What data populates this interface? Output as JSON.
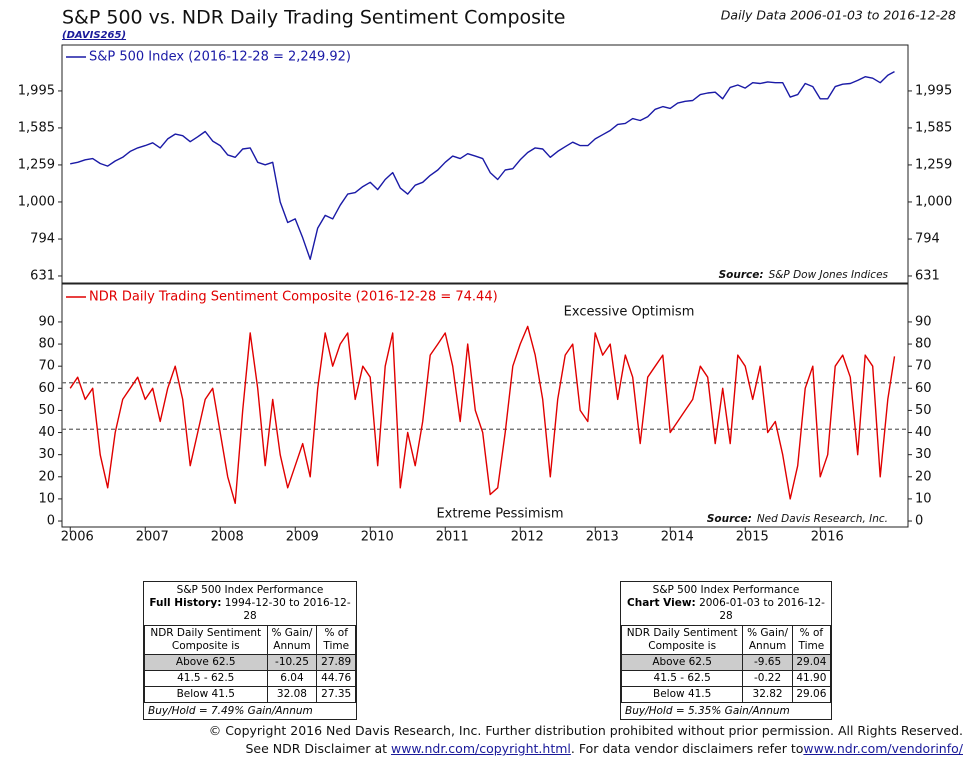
{
  "header": {
    "title": "S&P 500 vs. NDR Daily Trading Sentiment Composite",
    "code": "(DAVIS265)",
    "subtitle": "Daily Data 2006-01-03 to 2016-12-28"
  },
  "chart_data": [
    {
      "type": "line",
      "log_scale": true,
      "series": [
        {
          "name": "S&P 500 Index (2016-12-28 = 2,249.92)",
          "color": "#1a1aa6",
          "values": [
            1268,
            1280,
            1300,
            1310,
            1270,
            1250,
            1290,
            1320,
            1370,
            1400,
            1420,
            1445,
            1400,
            1480,
            1525,
            1510,
            1455,
            1500,
            1550,
            1460,
            1420,
            1340,
            1320,
            1390,
            1400,
            1280,
            1260,
            1280,
            1000,
            880,
            900,
            800,
            700,
            850,
            920,
            900,
            980,
            1050,
            1060,
            1100,
            1130,
            1080,
            1150,
            1200,
            1090,
            1050,
            1110,
            1130,
            1180,
            1220,
            1280,
            1330,
            1310,
            1350,
            1330,
            1310,
            1200,
            1150,
            1220,
            1230,
            1300,
            1360,
            1400,
            1390,
            1320,
            1370,
            1410,
            1450,
            1420,
            1420,
            1480,
            1520,
            1560,
            1620,
            1630,
            1680,
            1660,
            1700,
            1780,
            1810,
            1790,
            1850,
            1870,
            1880,
            1950,
            1970,
            1980,
            1900,
            2040,
            2070,
            2030,
            2100,
            2090,
            2110,
            2100,
            2100,
            1920,
            1950,
            2090,
            2050,
            1900,
            1900,
            2050,
            2080,
            2090,
            2130,
            2180,
            2160,
            2100,
            2200,
            2249.92
          ]
        }
      ],
      "x": [
        2006.0,
        2006.1,
        2006.2,
        2006.3,
        2006.4,
        2006.5,
        2006.6,
        2006.7,
        2006.8,
        2006.9,
        2007.0,
        2007.1,
        2007.2,
        2007.3,
        2007.4,
        2007.5,
        2007.6,
        2007.7,
        2007.8,
        2007.9,
        2008.0,
        2008.1,
        2008.2,
        2008.3,
        2008.4,
        2008.5,
        2008.6,
        2008.7,
        2008.8,
        2008.9,
        2009.0,
        2009.1,
        2009.2,
        2009.3,
        2009.4,
        2009.5,
        2009.6,
        2009.7,
        2009.8,
        2009.9,
        2010.0,
        2010.1,
        2010.2,
        2010.3,
        2010.4,
        2010.5,
        2010.6,
        2010.7,
        2010.8,
        2010.9,
        2011.0,
        2011.1,
        2011.2,
        2011.3,
        2011.4,
        2011.5,
        2011.6,
        2011.7,
        2011.8,
        2011.9,
        2012.0,
        2012.1,
        2012.2,
        2012.3,
        2012.4,
        2012.5,
        2012.6,
        2012.7,
        2012.8,
        2012.9,
        2013.0,
        2013.1,
        2013.2,
        2013.3,
        2013.4,
        2013.5,
        2013.6,
        2013.7,
        2013.8,
        2013.9,
        2014.0,
        2014.1,
        2014.2,
        2014.3,
        2014.4,
        2014.5,
        2014.6,
        2014.7,
        2014.8,
        2014.9,
        2015.0,
        2015.1,
        2015.2,
        2015.3,
        2015.4,
        2015.5,
        2015.6,
        2015.7,
        2015.8,
        2015.9,
        2016.0,
        2016.1,
        2016.2,
        2016.3,
        2016.4,
        2016.5,
        2016.6,
        2016.7,
        2016.8,
        2016.9,
        2016.99
      ],
      "xlim": [
        2005.89,
        2017.17
      ],
      "ylim": [
        604,
        2655
      ],
      "yticks": [
        631,
        794,
        {
          "value": 1000,
          "label": "1,000"
        },
        {
          "value": 1259,
          "label": "1,259"
        },
        {
          "value": 1585,
          "label": "1,585"
        },
        {
          "value": 1995,
          "label": "1,995"
        }
      ],
      "source_label": "Source:",
      "source": "S&P Dow Jones Indices"
    },
    {
      "type": "line",
      "series": [
        {
          "name": "NDR Daily Trading Sentiment Composite (2016-12-28 = 74.44)",
          "color": "#e00000",
          "values": [
            60,
            65,
            55,
            60,
            30,
            15,
            40,
            55,
            60,
            65,
            55,
            60,
            45,
            60,
            70,
            55,
            25,
            40,
            55,
            60,
            40,
            20,
            8,
            50,
            85,
            60,
            25,
            55,
            30,
            15,
            25,
            35,
            20,
            60,
            85,
            70,
            80,
            85,
            55,
            70,
            65,
            25,
            70,
            85,
            15,
            40,
            25,
            45,
            75,
            80,
            85,
            70,
            45,
            80,
            50,
            40,
            12,
            15,
            40,
            70,
            80,
            88,
            75,
            55,
            20,
            55,
            75,
            80,
            50,
            45,
            85,
            75,
            80,
            55,
            75,
            65,
            35,
            65,
            70,
            75,
            40,
            45,
            50,
            55,
            70,
            65,
            35,
            60,
            35,
            75,
            70,
            55,
            70,
            40,
            45,
            30,
            10,
            25,
            60,
            70,
            20,
            30,
            70,
            75,
            65,
            30,
            75,
            70,
            20,
            55,
            74.44
          ]
        }
      ],
      "x": [
        2006.0,
        2006.1,
        2006.2,
        2006.3,
        2006.4,
        2006.5,
        2006.6,
        2006.7,
        2006.8,
        2006.9,
        2007.0,
        2007.1,
        2007.2,
        2007.3,
        2007.4,
        2007.5,
        2007.6,
        2007.7,
        2007.8,
        2007.9,
        2008.0,
        2008.1,
        2008.2,
        2008.3,
        2008.4,
        2008.5,
        2008.6,
        2008.7,
        2008.8,
        2008.9,
        2009.0,
        2009.1,
        2009.2,
        2009.3,
        2009.4,
        2009.5,
        2009.6,
        2009.7,
        2009.8,
        2009.9,
        2010.0,
        2010.1,
        2010.2,
        2010.3,
        2010.4,
        2010.5,
        2010.6,
        2010.7,
        2010.8,
        2010.9,
        2011.0,
        2011.1,
        2011.2,
        2011.3,
        2011.4,
        2011.5,
        2011.6,
        2011.7,
        2011.8,
        2011.9,
        2012.0,
        2012.1,
        2012.2,
        2012.3,
        2012.4,
        2012.5,
        2012.6,
        2012.7,
        2012.8,
        2012.9,
        2013.0,
        2013.1,
        2013.2,
        2013.3,
        2013.4,
        2013.5,
        2013.6,
        2013.7,
        2013.8,
        2013.9,
        2014.0,
        2014.1,
        2014.2,
        2014.3,
        2014.4,
        2014.5,
        2014.6,
        2014.7,
        2014.8,
        2014.9,
        2015.0,
        2015.1,
        2015.2,
        2015.3,
        2015.4,
        2015.5,
        2015.6,
        2015.7,
        2015.8,
        2015.9,
        2016.0,
        2016.1,
        2016.2,
        2016.3,
        2016.4,
        2016.5,
        2016.6,
        2016.7,
        2016.8,
        2016.9,
        2016.99
      ],
      "xlim": [
        2005.89,
        2017.17
      ],
      "xticks": [
        2006,
        2007,
        2008,
        2009,
        2010,
        2011,
        2012,
        2013,
        2014,
        2015,
        2016
      ],
      "ylim": [
        -2.7,
        106.7
      ],
      "yticks": [
        0,
        10,
        20,
        30,
        40,
        50,
        60,
        70,
        80,
        90
      ],
      "reference_lines": [
        62.5,
        41.5
      ],
      "annotations": [
        "Excessive Optimism",
        "Extreme Pessimism"
      ],
      "source_label": "Source:",
      "source": "Ned Davis Research, Inc."
    }
  ],
  "tables": [
    {
      "title": "S&P 500 Index Performance",
      "period_label": "Full History:",
      "period": "1994-12-30 to 2016-12-28",
      "columns": [
        "NDR Daily Sentiment\nComposite is",
        "% Gain/\nAnnum",
        "% of\nTime"
      ],
      "rows": [
        [
          "Above 62.5",
          "-10.25",
          "27.89"
        ],
        [
          "41.5 - 62.5",
          "6.04",
          "44.76"
        ],
        [
          "Below 41.5",
          "32.08",
          "27.35"
        ]
      ],
      "footer": "Buy/Hold = 7.49% Gain/Annum"
    },
    {
      "title": "S&P 500 Index Performance",
      "period_label": "Chart View:",
      "period": "2006-01-03 to 2016-12-28",
      "columns": [
        "NDR Daily Sentiment\nComposite is",
        "% Gain/\nAnnum",
        "% of\nTime"
      ],
      "rows": [
        [
          "Above 62.5",
          "-9.65",
          "29.04"
        ],
        [
          "41.5 - 62.5",
          "-0.22",
          "41.90"
        ],
        [
          "Below 41.5",
          "32.82",
          "29.06"
        ]
      ],
      "footer": "Buy/Hold = 5.35% Gain/Annum"
    }
  ],
  "footer": {
    "line1": "© Copyright 2016 Ned Davis Research, Inc. Further distribution prohibited without prior permission. All Rights Reserved.",
    "line2_text": "See NDR Disclaimer at ",
    "link1": "www.ndr.com/copyright.html",
    "line2_mid": ". For data vendor disclaimers refer to",
    "link2": "www.ndr.com/vendorinfo/"
  }
}
